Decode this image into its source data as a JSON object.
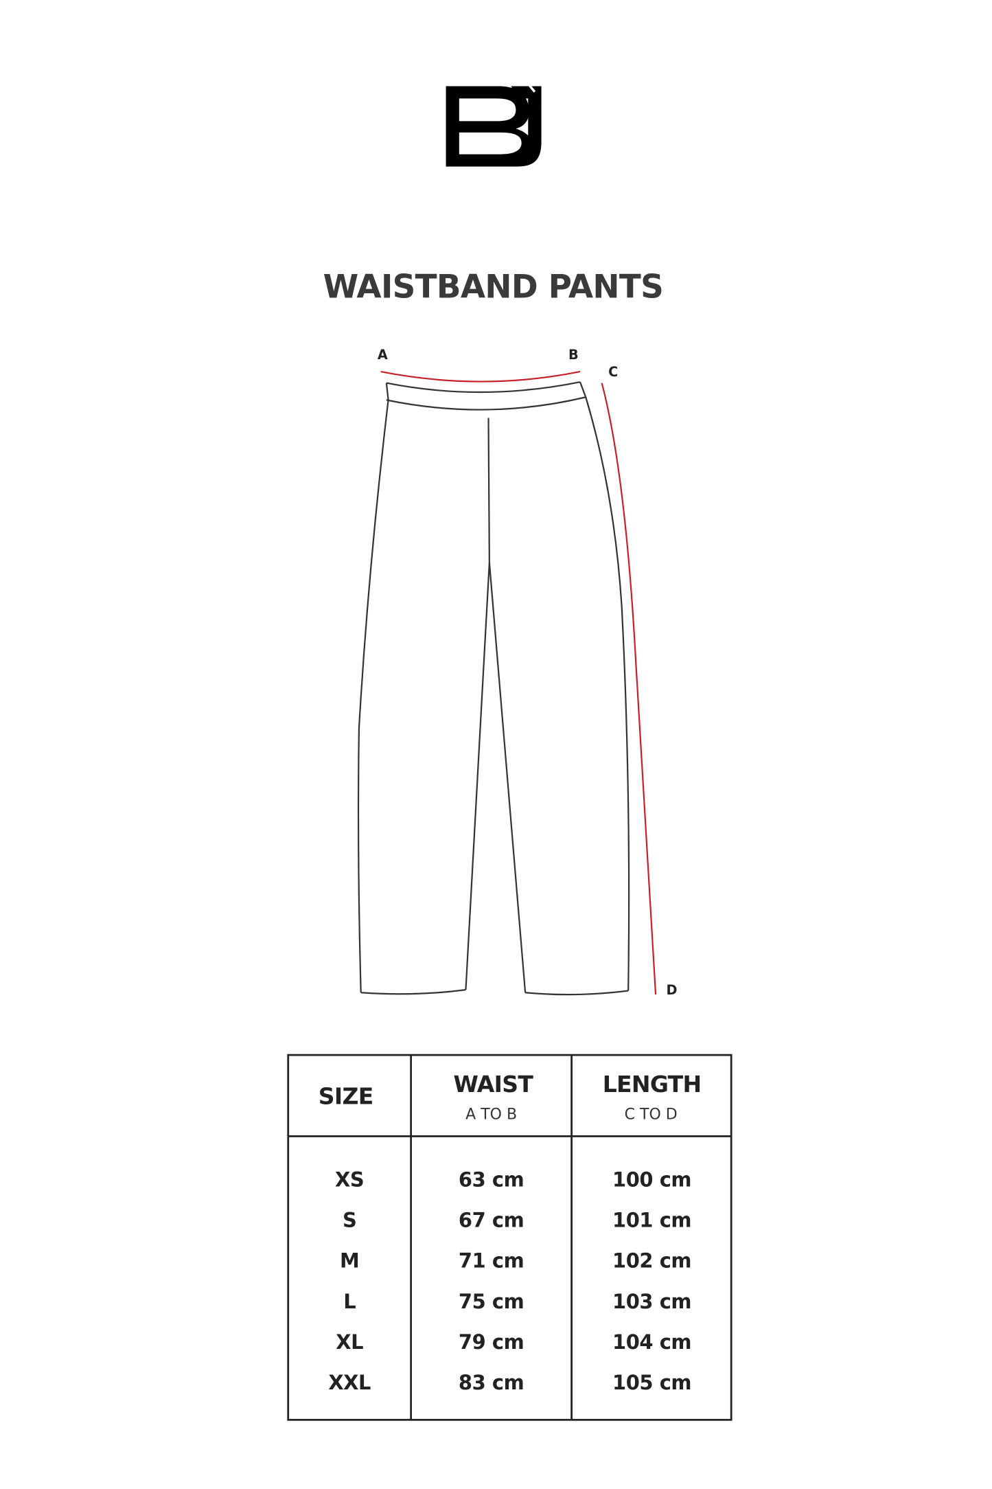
{
  "brand": {
    "logo_text": "BJ"
  },
  "title": "WAISTBAND PANTS",
  "diagram": {
    "points": [
      "A",
      "B",
      "C",
      "D"
    ],
    "measure_color": "#c8202a",
    "outline_color": "#333333"
  },
  "table": {
    "headers": [
      {
        "label": "SIZE",
        "sub": ""
      },
      {
        "label": "WAIST",
        "sub": "A TO B"
      },
      {
        "label": "LENGTH",
        "sub": "C TO D"
      }
    ],
    "rows": [
      {
        "size": "XS",
        "waist": "63 cm",
        "length": "100 cm"
      },
      {
        "size": "S",
        "waist": "67 cm",
        "length": "101 cm"
      },
      {
        "size": "M",
        "waist": "71 cm",
        "length": "102 cm"
      },
      {
        "size": "L",
        "waist": "75 cm",
        "length": "103 cm"
      },
      {
        "size": "XL",
        "waist": "79 cm",
        "length": "104 cm"
      },
      {
        "size": "XXL",
        "waist": "83 cm",
        "length": "105 cm"
      }
    ]
  }
}
